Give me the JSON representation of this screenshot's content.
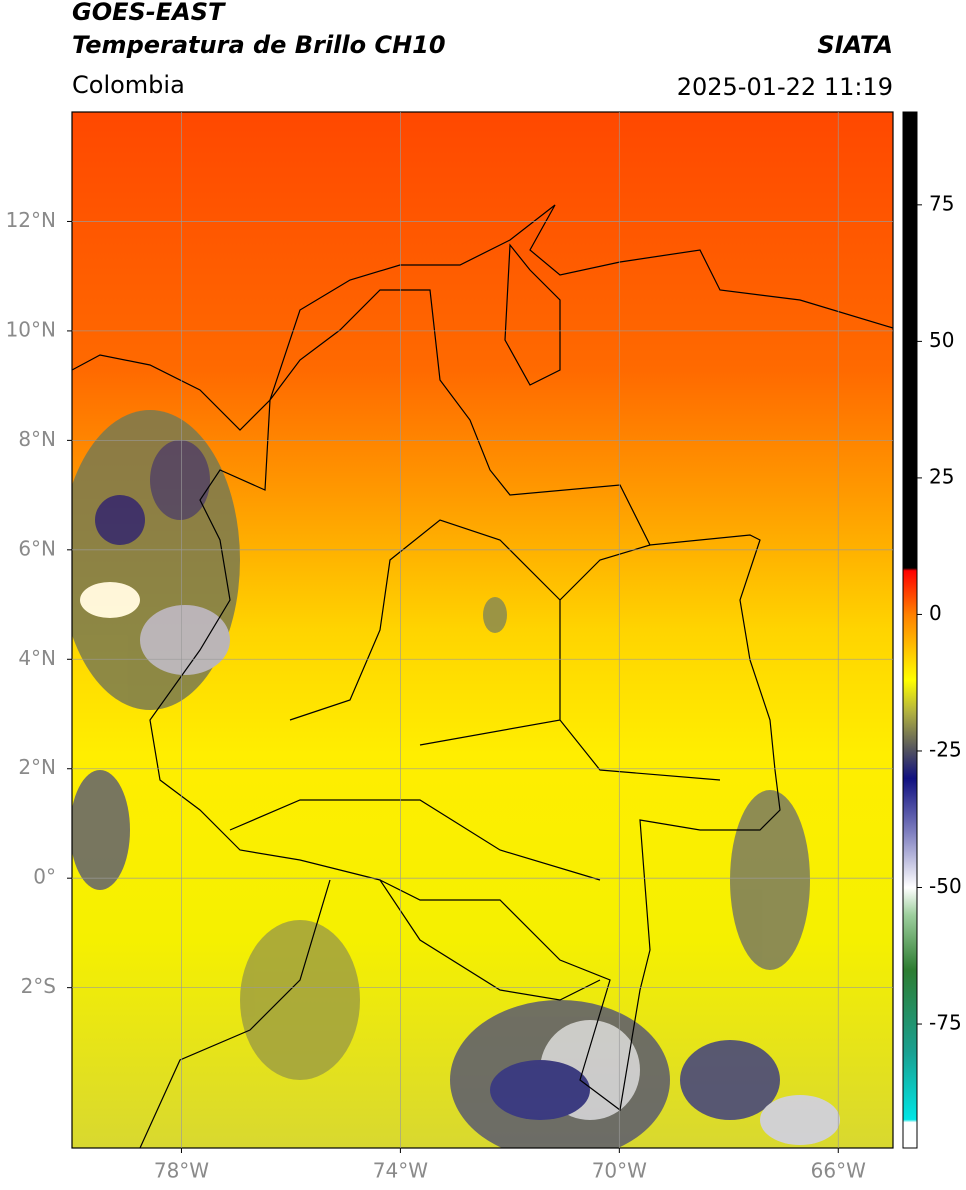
{
  "map_data": {
    "title": "GOES-EAST",
    "subtitle": "Temperatura de Brillo CH10",
    "region": "Colombia",
    "source": "SIATA",
    "datetime": "2025-01-22 11:19",
    "grid": true,
    "xlim": [
      -80,
      -65
    ],
    "ylim": [
      -4.93,
      14
    ],
    "xticks": [
      {
        "value": -78,
        "label": "78°W"
      },
      {
        "value": -74,
        "label": "74°W"
      },
      {
        "value": -70,
        "label": "70°W"
      },
      {
        "value": -66,
        "label": "66°W"
      }
    ],
    "yticks": [
      {
        "value": 12,
        "label": "12°N"
      },
      {
        "value": 10,
        "label": "10°N"
      },
      {
        "value": 8,
        "label": "8°N"
      },
      {
        "value": 6,
        "label": "6°N"
      },
      {
        "value": 4,
        "label": "4°N"
      },
      {
        "value": 2,
        "label": "2°N"
      },
      {
        "value": 0,
        "label": "0°"
      },
      {
        "value": -2,
        "label": "2°S"
      }
    ],
    "colorbar": {
      "clim": [
        -97.7,
        92
      ],
      "ticks": [
        75,
        50,
        25,
        0,
        -25,
        -50,
        -75
      ],
      "colormap": [
        {
          "value": -97.7,
          "color": "#ffffff"
        },
        {
          "value": -93,
          "color": "#ffffff"
        },
        {
          "value": -92.5,
          "color": "#00e5e5"
        },
        {
          "value": -80,
          "color": "#1aa090"
        },
        {
          "value": -65,
          "color": "#2e7d32"
        },
        {
          "value": -55,
          "color": "#9ecf9e"
        },
        {
          "value": -50,
          "color": "#ffffff"
        },
        {
          "value": -40,
          "color": "#8080c0"
        },
        {
          "value": -30,
          "color": "#101080"
        },
        {
          "value": -25,
          "color": "#505060"
        },
        {
          "value": -18,
          "color": "#b0b040"
        },
        {
          "value": -12,
          "color": "#ffff00"
        },
        {
          "value": 0,
          "color": "#ff8000"
        },
        {
          "value": 8,
          "color": "#ff0000"
        },
        {
          "value": 8.5,
          "color": "#000000"
        },
        {
          "value": 92,
          "color": "#000000"
        }
      ]
    }
  }
}
